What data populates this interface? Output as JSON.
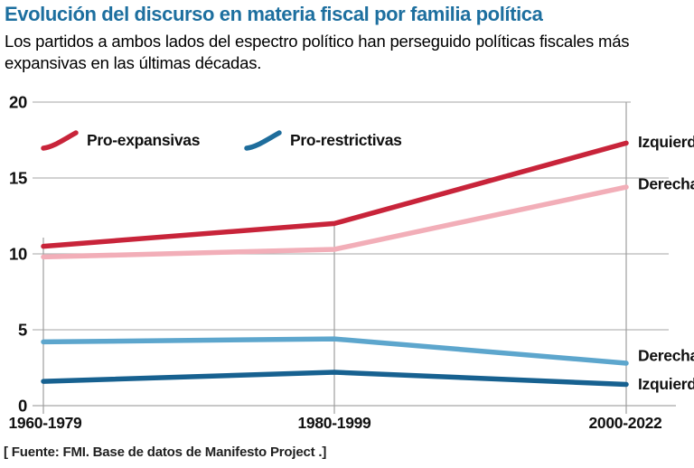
{
  "header": {
    "title": "Evolución del discurso en materia fiscal por familia política",
    "subtitle_line1": "Los partidos a ambos lados del espectro político han perseguido políticas fiscales más",
    "subtitle_line2": "expansivas en las últimas décadas."
  },
  "source": "[ Fuente: FMI. Base de datos de Manifesto Project .]",
  "colors": {
    "title_blue": "#1d6f9f",
    "red": "#c8243a",
    "pink": "#f2aeb8",
    "light_blue": "#5da6cd",
    "dark_blue": "#176190",
    "gridline": "#b8b8b8",
    "vertical_line": "#9e9e9e",
    "text": "#111111"
  },
  "chart_data": {
    "type": "line",
    "categories": [
      "1960-1979",
      "1980-1999",
      "2000-2022"
    ],
    "yticks": [
      0,
      5,
      10,
      15,
      20
    ],
    "ylim": [
      0,
      20
    ],
    "grid": true,
    "legend_position": "top-left-inside",
    "legend": [
      {
        "label": "Pro-expansivas",
        "color": "#c8243a"
      },
      {
        "label": "Pro-restrictivas",
        "color": "#1e6d9c"
      }
    ],
    "series": [
      {
        "name": "Izquierda pro-expansivas",
        "end_label": "Izquierda",
        "color": "#c8243a",
        "values": [
          10.5,
          12.0,
          17.3
        ]
      },
      {
        "name": "Derecha pro-expansivas",
        "end_label": "Derecha",
        "color": "#f2aeb8",
        "values": [
          9.8,
          10.3,
          14.4
        ]
      },
      {
        "name": "Derecha pro-restrictivas",
        "end_label": "Derecha",
        "color": "#5da6cd",
        "values": [
          4.2,
          4.4,
          2.8
        ]
      },
      {
        "name": "Izquierda pro-restrictivas",
        "end_label": "Izquierda",
        "color": "#176190",
        "values": [
          1.6,
          2.2,
          1.4
        ]
      }
    ]
  }
}
